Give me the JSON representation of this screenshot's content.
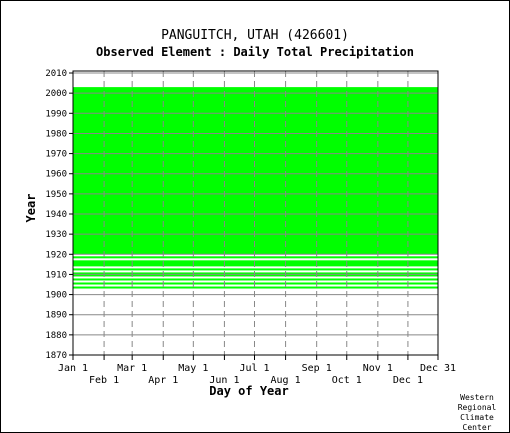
{
  "station": {
    "name": "PANGUITCH, UTAH",
    "id": "(426601)"
  },
  "element": {
    "title": "Observed Element : Daily Total Precipitation"
  },
  "credit": [
    "Western",
    "Regional",
    "Climate",
    "Center"
  ],
  "chart_data": {
    "type": "heatmap",
    "title": "PANGUITCH, UTAH   (426601)",
    "subtitle": "Observed Element : Daily Total Precipitation",
    "xlabel": "Day of Year",
    "ylabel": "Year",
    "xlim": [
      1,
      365
    ],
    "ylim": [
      1870,
      2011
    ],
    "grid": true,
    "color": "#00ff00",
    "yticks": [
      1870,
      1880,
      1890,
      1900,
      1910,
      1920,
      1930,
      1940,
      1950,
      1960,
      1970,
      1980,
      1990,
      2000,
      2010
    ],
    "xticks_upper": [
      {
        "label": "Jan 1",
        "day": 1
      },
      {
        "label": "Mar 1",
        "day": 60
      },
      {
        "label": "May 1",
        "day": 121
      },
      {
        "label": "Jul 1",
        "day": 182
      },
      {
        "label": "Sep 1",
        "day": 244
      },
      {
        "label": "Nov 1",
        "day": 305
      },
      {
        "label": "Dec 31",
        "day": 365
      }
    ],
    "xticks_lower": [
      {
        "label": "Feb 1",
        "day": 32
      },
      {
        "label": "Apr 1",
        "day": 91
      },
      {
        "label": "Jun 1",
        "day": 152
      },
      {
        "label": "Aug 1",
        "day": 213
      },
      {
        "label": "Oct 1",
        "day": 274
      },
      {
        "label": "Dec 1",
        "day": 335
      }
    ],
    "coverage": [
      {
        "start_year": 1903,
        "end_year": 1904,
        "start_day": 1,
        "end_day": 365
      },
      {
        "start_year": 1905,
        "end_year": 1906,
        "start_day": 1,
        "end_day": 365
      },
      {
        "start_year": 1907,
        "end_year": 1908,
        "start_day": 1,
        "end_day": 365
      },
      {
        "start_year": 1909,
        "end_year": 1911,
        "start_day": 1,
        "end_day": 365
      },
      {
        "start_year": 1912,
        "end_year": 1913,
        "start_day": 1,
        "end_day": 365
      },
      {
        "start_year": 1914,
        "end_year": 1917,
        "start_day": 1,
        "end_day": 365
      },
      {
        "start_year": 1918,
        "end_year": 1919,
        "start_day": 1,
        "end_day": 365
      },
      {
        "start_year": 1920,
        "end_year": 2003,
        "start_day": 1,
        "end_day": 365
      }
    ]
  }
}
